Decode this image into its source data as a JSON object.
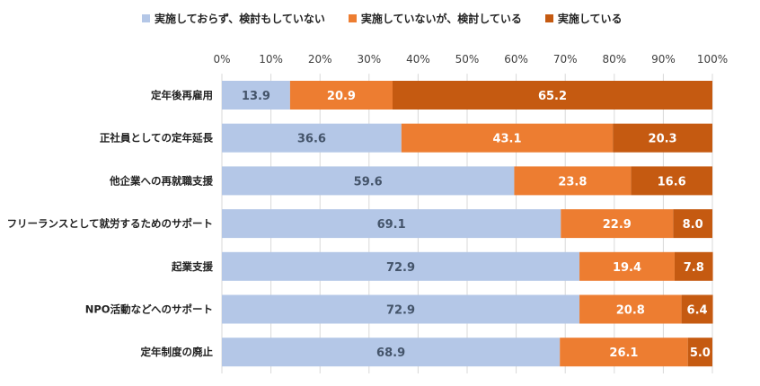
{
  "chart_data": {
    "type": "bar",
    "orientation": "horizontal",
    "stacked": true,
    "percent_stacked": true,
    "categories": [
      "定年後再雇用",
      "正社員としての定年延長",
      "他企業への再就職支援",
      "フリーランスとして就労するためのサポート",
      "起業支援",
      "NPO活動などへのサポート",
      "定年制度の廃止"
    ],
    "series": [
      {
        "name": "実施しておらず、検討もしていない",
        "color": "#b4c7e7",
        "values": [
          13.9,
          36.6,
          59.6,
          69.1,
          72.9,
          72.9,
          68.9
        ]
      },
      {
        "name": "実施していないが、検討している",
        "color": "#ed7d31",
        "values": [
          20.9,
          43.1,
          23.8,
          22.9,
          19.4,
          20.8,
          26.1
        ]
      },
      {
        "name": "実施している",
        "color": "#c55a11",
        "values": [
          65.2,
          20.3,
          16.6,
          8.0,
          7.8,
          6.4,
          5.0
        ]
      }
    ],
    "xlim": [
      0,
      100
    ],
    "x_ticks": [
      "0%",
      "10%",
      "20%",
      "30%",
      "40%",
      "50%",
      "60%",
      "70%",
      "80%",
      "90%",
      "100%"
    ],
    "legend_position": "top",
    "grid": true
  }
}
